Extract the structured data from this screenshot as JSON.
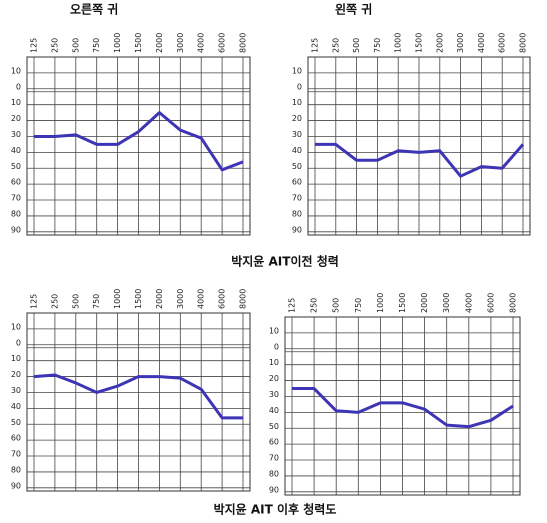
{
  "chart_data": [
    {
      "type": "line",
      "title": "오른쪽 귀",
      "categories": [
        "125",
        "250",
        "500",
        "750",
        "1000",
        "1500",
        "2000",
        "3000",
        "4000",
        "6000",
        "8000"
      ],
      "series": [
        {
          "color": "#3d35b5",
          "values": [
            30,
            30,
            29,
            35,
            35,
            27,
            15,
            26,
            31,
            51,
            46
          ]
        }
      ],
      "ylim": [
        -20,
        92
      ],
      "y_inverted": true,
      "yticks": [
        {
          "value": -10,
          "label": "10"
        },
        0,
        10,
        20,
        30,
        40,
        50,
        60,
        70,
        80,
        90
      ],
      "grid": true
    },
    {
      "type": "line",
      "title": "왼쪽 귀",
      "categories": [
        "125",
        "250",
        "500",
        "750",
        "1000",
        "1500",
        "2000",
        "3000",
        "4000",
        "6000",
        "8000"
      ],
      "series": [
        {
          "color": "#3d35b5",
          "values": [
            35,
            35,
            45,
            45,
            39,
            40,
            39,
            55,
            49,
            50,
            35
          ]
        }
      ],
      "ylim": [
        -20,
        92
      ],
      "y_inverted": true,
      "yticks": [
        {
          "value": -10,
          "label": "10"
        },
        0,
        10,
        20,
        30,
        40,
        50,
        60,
        70,
        80,
        90
      ],
      "grid": true
    },
    {
      "type": "line",
      "categories": [
        "125",
        "250",
        "500",
        "750",
        "1000",
        "1500",
        "2000",
        "3000",
        "4000",
        "6000",
        "8000"
      ],
      "series": [
        {
          "color": "#3d35b5",
          "values": [
            20,
            19,
            24,
            30,
            26,
            20,
            20,
            21,
            28,
            46,
            46
          ]
        }
      ],
      "ylim": [
        -20,
        92
      ],
      "y_inverted": true,
      "yticks": [
        {
          "value": -10,
          "label": "10"
        },
        0,
        10,
        20,
        30,
        40,
        50,
        60,
        70,
        80,
        90
      ],
      "grid": true
    },
    {
      "type": "line",
      "categories": [
        "125",
        "250",
        "500",
        "750",
        "1000",
        "1500",
        "2000",
        "3000",
        "4000",
        "6000",
        "8000"
      ],
      "series": [
        {
          "color": "#3d35b5",
          "values": [
            25,
            25,
            39,
            40,
            34,
            34,
            38,
            48,
            49,
            45,
            36
          ]
        }
      ],
      "ylim": [
        -20,
        92
      ],
      "y_inverted": true,
      "yticks": [
        {
          "value": -10,
          "label": "10"
        },
        0,
        10,
        20,
        30,
        40,
        50,
        60,
        70,
        80,
        90
      ],
      "grid": true
    }
  ],
  "captions": [
    "박지윤 AIT이전 청력",
    "박지윤 AIT 이후 청력도"
  ]
}
